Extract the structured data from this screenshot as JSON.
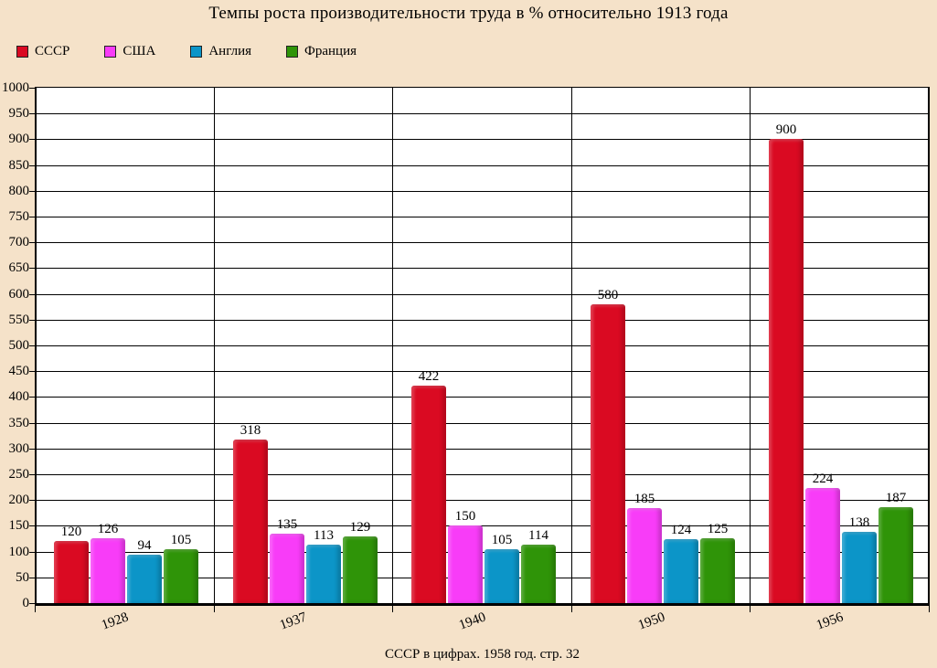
{
  "source": "СССР в цифрах. 1958 год.  стр. 32",
  "colors": {
    "page_background": "#f5e2c9",
    "plot_background": "#ffffff",
    "axis_and_grid": "#000000"
  },
  "chart_data": {
    "type": "bar",
    "title": "Темпы роста производительности труда в % относительно 1913 года",
    "categories": [
      "1928",
      "1937",
      "1940",
      "1950",
      "1956"
    ],
    "series": [
      {
        "name": "СССР",
        "color": "#da0a22",
        "values": [
          120,
          318,
          422,
          580,
          900
        ]
      },
      {
        "name": "США",
        "color": "#f83cf8",
        "values": [
          126,
          135,
          150,
          185,
          224
        ]
      },
      {
        "name": "Англия",
        "color": "#0c95c8",
        "values": [
          94,
          113,
          105,
          124,
          138
        ]
      },
      {
        "name": "Франция",
        "color": "#2f9408",
        "values": [
          105,
          129,
          114,
          125,
          187
        ]
      }
    ],
    "xlabel": "",
    "ylabel": "",
    "ylim": [
      0,
      1000
    ],
    "ytick_step": 50,
    "grid": true,
    "legend_position": "top-left",
    "value_labels_shown": true
  }
}
